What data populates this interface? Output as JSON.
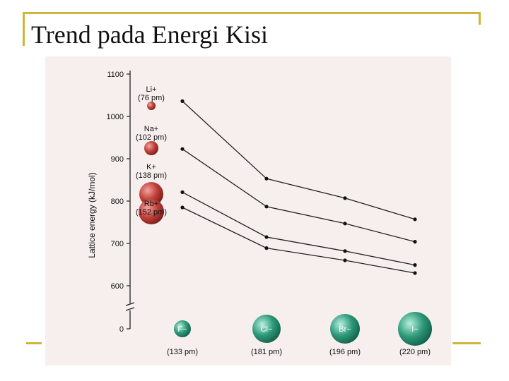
{
  "slide": {
    "title": "Trend pada Energi Kisi"
  },
  "colors": {
    "frame": "#cfb53b",
    "cation_sphere": "#c0403a",
    "anion_sphere": "#2e9a7a",
    "figure_bg": "#f6efee"
  },
  "chart_data": {
    "type": "line",
    "ylabel": "Lattice energy (kJ/mol)",
    "y_ticks": [
      0,
      600,
      700,
      800,
      900,
      1000,
      1100
    ],
    "y_axis_break": [
      0,
      600
    ],
    "categories": [
      "F−",
      "Cl−",
      "Br−",
      "I−"
    ],
    "category_radii": [
      "(133 pm)",
      "(181 pm)",
      "(196 pm)",
      "(220 pm)"
    ],
    "series": [
      {
        "name": "Li+",
        "radius": "(76 pm)",
        "values": [
          1036,
          853,
          807,
          757
        ]
      },
      {
        "name": "Na+",
        "radius": "(102 pm)",
        "values": [
          923,
          787,
          747,
          704
        ]
      },
      {
        "name": "K+",
        "radius": "(138 pm)",
        "values": [
          821,
          715,
          682,
          649
        ]
      },
      {
        "name": "Rb+",
        "radius": "(152 pm)",
        "values": [
          785,
          689,
          660,
          630
        ]
      }
    ]
  }
}
